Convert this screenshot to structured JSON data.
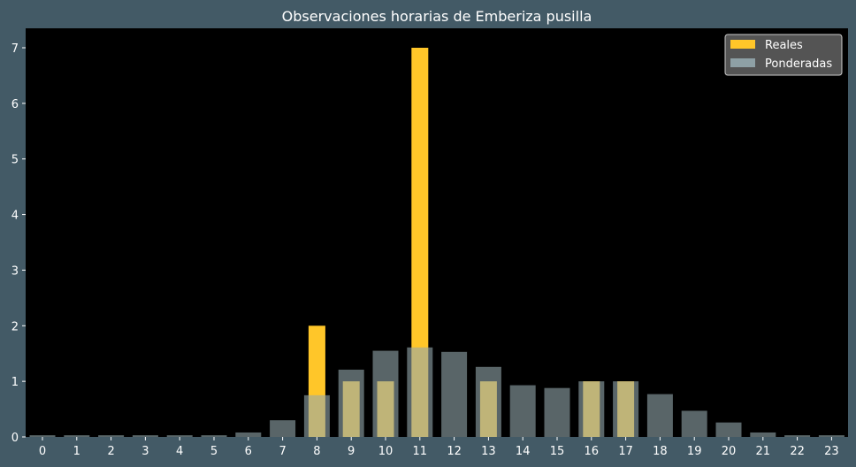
{
  "chart_data": {
    "type": "bar",
    "title": "Observaciones horarias de Emberiza pusilla",
    "xlabel": "",
    "ylabel": "",
    "categories": [
      "0",
      "1",
      "2",
      "3",
      "4",
      "5",
      "6",
      "7",
      "8",
      "9",
      "10",
      "11",
      "12",
      "13",
      "14",
      "15",
      "16",
      "17",
      "18",
      "19",
      "20",
      "21",
      "22",
      "23"
    ],
    "ylim": [
      0,
      7.35
    ],
    "yticks": [
      0,
      1,
      2,
      3,
      4,
      5,
      6,
      7
    ],
    "grid": false,
    "legend_position": "top-right",
    "series": [
      {
        "name": "Reales",
        "color": "#ffc629",
        "values": [
          0,
          0,
          0,
          0,
          0,
          0,
          0,
          0,
          2,
          1,
          1,
          7,
          0,
          1,
          0,
          0,
          1,
          1,
          0,
          0,
          0,
          0,
          0,
          0
        ]
      },
      {
        "name": "Ponderadas",
        "color": "#95a8ae",
        "opacity": 0.6,
        "values": [
          0.03,
          0.03,
          0.03,
          0.03,
          0.03,
          0.03,
          0.08,
          0.3,
          0.75,
          1.21,
          1.55,
          1.61,
          1.53,
          1.26,
          0.93,
          0.88,
          1.0,
          1.0,
          0.77,
          0.47,
          0.26,
          0.08,
          0.03,
          0.03
        ]
      }
    ]
  }
}
